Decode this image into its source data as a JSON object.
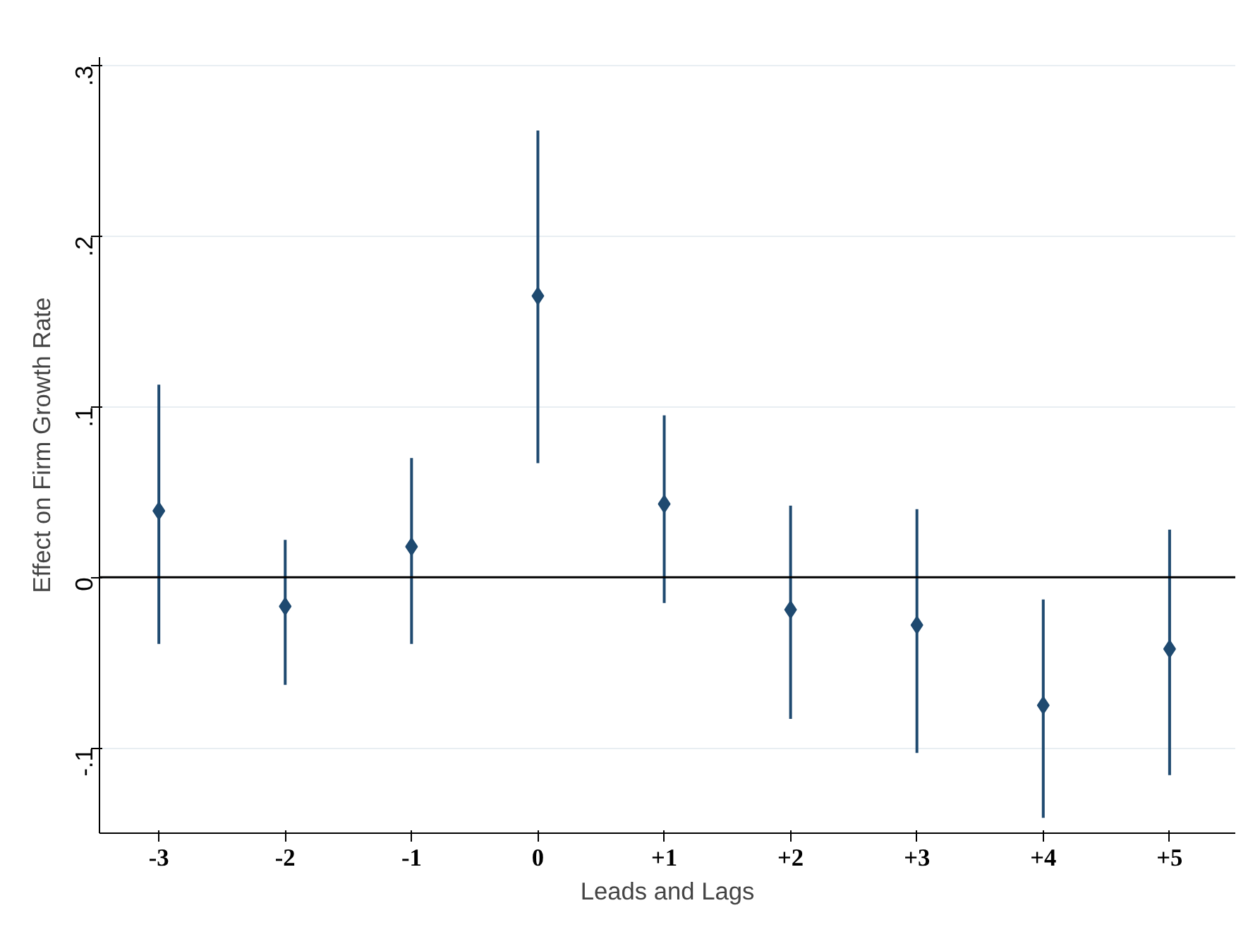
{
  "chart_data": {
    "type": "scatter",
    "xlabel": "Leads and Lags",
    "ylabel": "Effect on Firm Growth Rate",
    "categories": [
      "-3",
      "-2",
      "-1",
      "0",
      "+1",
      "+2",
      "+3",
      "+4",
      "+5"
    ],
    "values": [
      0.039,
      -0.017,
      0.018,
      0.165,
      0.043,
      -0.019,
      -0.028,
      -0.075,
      -0.042
    ],
    "errors": [
      [
        -0.039,
        0.113
      ],
      [
        -0.063,
        0.022
      ],
      [
        -0.039,
        0.07
      ],
      [
        0.067,
        0.262
      ],
      [
        -0.015,
        0.095
      ],
      [
        -0.083,
        0.042
      ],
      [
        -0.103,
        0.04
      ],
      [
        -0.141,
        -0.013
      ],
      [
        -0.116,
        0.028
      ]
    ],
    "color": "#1f4a70",
    "marker": "diamond",
    "grid": "y",
    "ylim": [
      -0.15,
      0.305
    ],
    "yticks": [
      {
        "value": -0.1,
        "label": "-.1"
      },
      0,
      {
        "value": 0.1,
        "label": ".1"
      },
      {
        "value": 0.2,
        "label": ".2"
      },
      {
        "value": 0.3,
        "label": ".3"
      }
    ],
    "ref_lines": [
      {
        "axis": "y",
        "value": 0,
        "color": "#000000"
      }
    ]
  }
}
